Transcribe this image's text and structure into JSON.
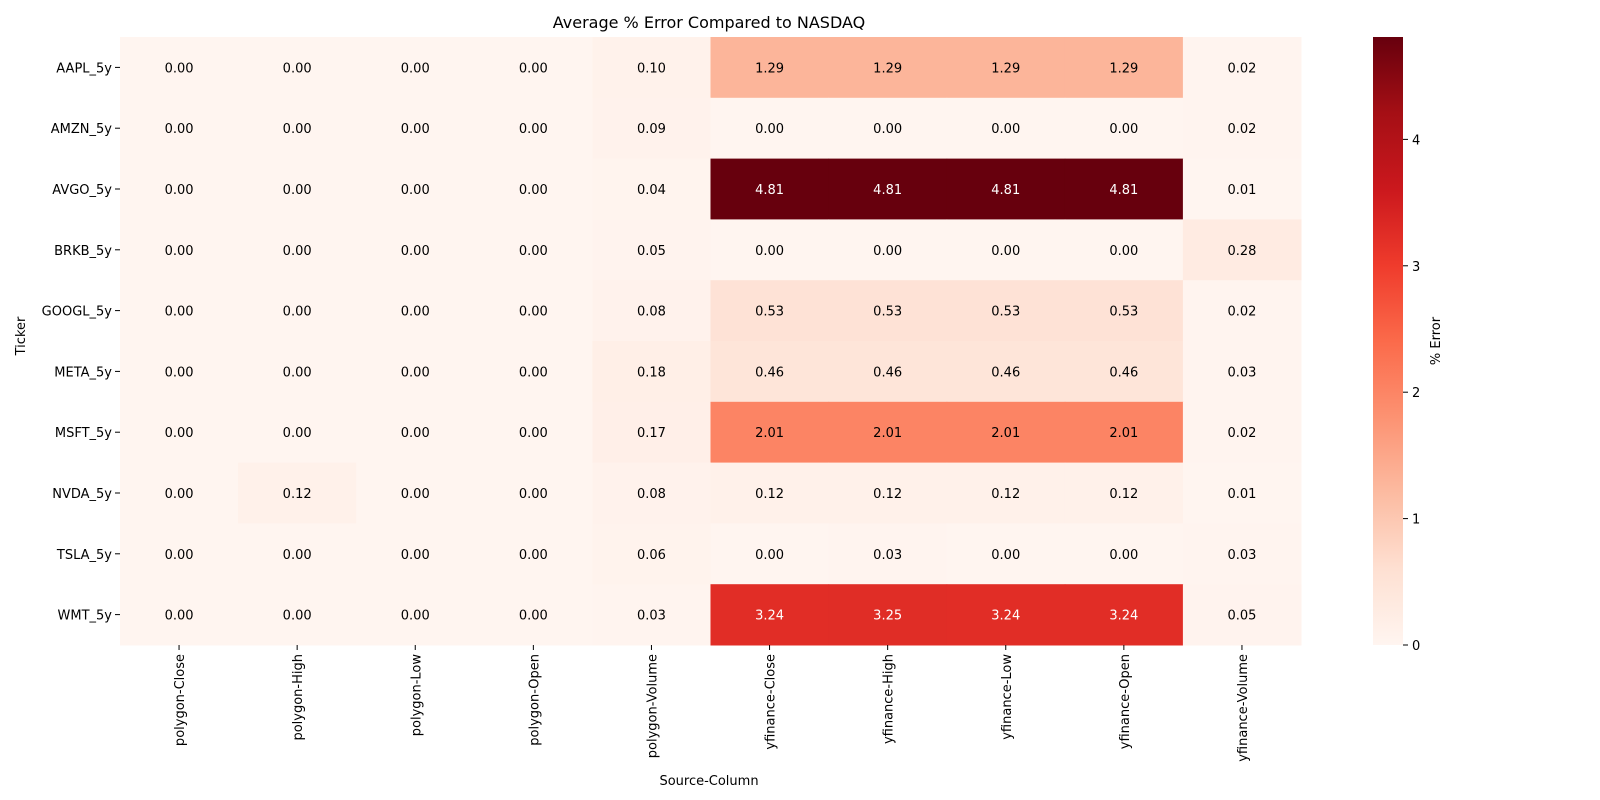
{
  "chart_data": {
    "type": "heatmap",
    "title": "Average % Error Compared to NASDAQ",
    "xlabel": "Source-Column",
    "ylabel": "Ticker",
    "colorbar_label": "% Error",
    "colormap": "Reds",
    "vmin": 0,
    "vmax": 4.81,
    "colorbar_ticks": [
      0,
      1,
      2,
      3,
      4
    ],
    "columns": [
      "polygon-Close",
      "polygon-High",
      "polygon-Low",
      "polygon-Open",
      "polygon-Volume",
      "yfinance-Close",
      "yfinance-High",
      "yfinance-Low",
      "yfinance-Open",
      "yfinance-Volume"
    ],
    "rows": [
      "AAPL_5y",
      "AMZN_5y",
      "AVGO_5y",
      "BRKB_5y",
      "GOOGL_5y",
      "META_5y",
      "MSFT_5y",
      "NVDA_5y",
      "TSLA_5y",
      "WMT_5y"
    ],
    "values": [
      [
        "0.00",
        "0.00",
        "0.00",
        "0.00",
        "0.10",
        "1.29",
        "1.29",
        "1.29",
        "1.29",
        "0.02"
      ],
      [
        "0.00",
        "0.00",
        "0.00",
        "0.00",
        "0.09",
        "0.00",
        "0.00",
        "0.00",
        "0.00",
        "0.02"
      ],
      [
        "0.00",
        "0.00",
        "0.00",
        "0.00",
        "0.04",
        "4.81",
        "4.81",
        "4.81",
        "4.81",
        "0.01"
      ],
      [
        "0.00",
        "0.00",
        "0.00",
        "0.00",
        "0.05",
        "0.00",
        "0.00",
        "0.00",
        "0.00",
        "0.28"
      ],
      [
        "0.00",
        "0.00",
        "0.00",
        "0.00",
        "0.08",
        "0.53",
        "0.53",
        "0.53",
        "0.53",
        "0.02"
      ],
      [
        "0.00",
        "0.00",
        "0.00",
        "0.00",
        "0.18",
        "0.46",
        "0.46",
        "0.46",
        "0.46",
        "0.03"
      ],
      [
        "0.00",
        "0.00",
        "0.00",
        "0.00",
        "0.17",
        "2.01",
        "2.01",
        "2.01",
        "2.01",
        "0.02"
      ],
      [
        "0.00",
        "0.12",
        "0.00",
        "0.00",
        "0.08",
        "0.12",
        "0.12",
        "0.12",
        "0.12",
        "0.01"
      ],
      [
        "0.00",
        "0.00",
        "0.00",
        "0.00",
        "0.06",
        "0.00",
        "0.03",
        "0.00",
        "0.00",
        "0.03"
      ],
      [
        "0.00",
        "0.00",
        "0.00",
        "0.00",
        "0.03",
        "3.24",
        "3.25",
        "3.24",
        "3.24",
        "0.05"
      ]
    ]
  }
}
